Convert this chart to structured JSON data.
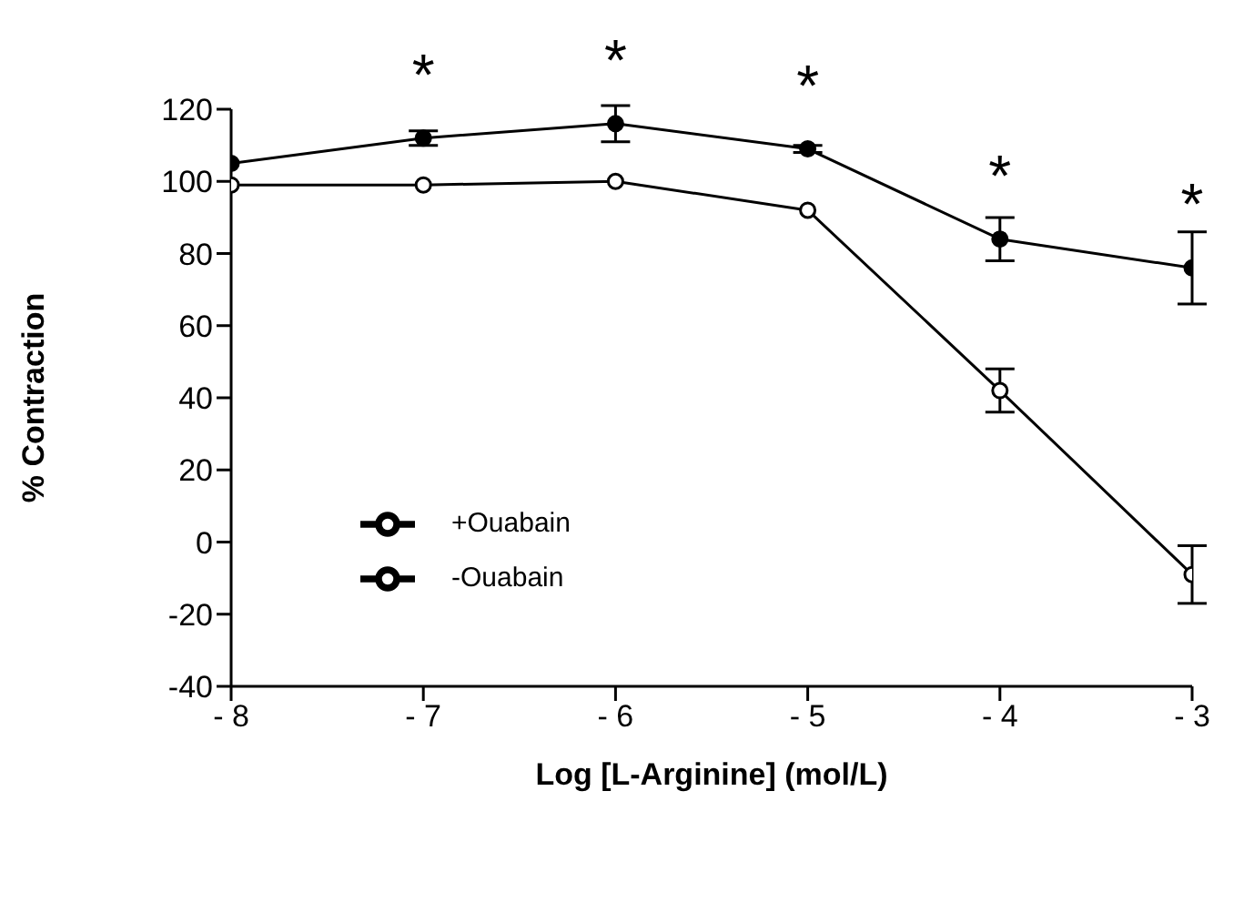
{
  "chart_data": {
    "type": "line",
    "xlabel": "Log  [L-Arginine]  (mol/L)",
    "ylabel": "%  Contraction",
    "x": [
      -8,
      -7,
      -6,
      -5,
      -4,
      -3
    ],
    "series": [
      {
        "name": "-Ouabain",
        "color": "#000000",
        "values": [
          99,
          99,
          100,
          92,
          42,
          -9
        ],
        "errors": [
          null,
          null,
          null,
          null,
          6,
          8
        ]
      },
      {
        "name": "+Ouabain",
        "color": "#000000",
        "values": [
          105,
          112,
          116,
          109,
          84,
          76
        ],
        "errors": [
          null,
          2,
          5,
          1,
          6,
          10
        ]
      }
    ],
    "xlim": [
      -8,
      -3
    ],
    "xticks": [
      {
        "value": -8,
        "label": "- 8"
      },
      {
        "value": -7,
        "label": "- 7"
      },
      {
        "value": -6,
        "label": "- 6"
      },
      {
        "value": -5,
        "label": "- 5"
      },
      {
        "value": -4,
        "label": "- 4"
      },
      {
        "value": -3,
        "label": "- 3"
      }
    ],
    "ylim": [
      -40,
      120
    ],
    "yticks": [
      -40,
      -20,
      0,
      20,
      40,
      60,
      80,
      100,
      120
    ],
    "annotations": [
      {
        "text": "*",
        "x": -7,
        "y": 112
      },
      {
        "text": "*",
        "x": -6,
        "y": 116
      },
      {
        "text": "*",
        "x": -5,
        "y": 109
      },
      {
        "text": "*",
        "x": -4,
        "y": 84
      },
      {
        "text": "*",
        "x": -3,
        "y": 76
      }
    ],
    "grid": false,
    "legend": "left",
    "marker": "circle",
    "line_style": "solid"
  }
}
